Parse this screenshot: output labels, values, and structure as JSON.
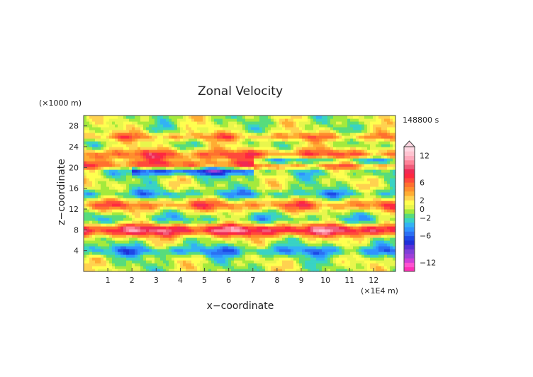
{
  "chart_data": {
    "type": "heatmap",
    "title": "Zonal Velocity",
    "xlabel": "x−coordinate",
    "ylabel": "z−coordinate",
    "x_unit": "(×1E4 m)",
    "y_unit": "(×1000 m)",
    "time_label": "148800 s",
    "x_ticks": [
      "1",
      "2",
      "3",
      "4",
      "5",
      "6",
      "7",
      "8",
      "9",
      "10",
      "11",
      "12"
    ],
    "x_tick_values": [
      1,
      2,
      3,
      4,
      5,
      6,
      7,
      8,
      9,
      10,
      11,
      12
    ],
    "y_ticks": [
      "4",
      "8",
      "12",
      "16",
      "20",
      "24",
      "28"
    ],
    "y_tick_values": [
      4,
      8,
      12,
      16,
      20,
      24,
      28
    ],
    "xlim": [
      0,
      12.9
    ],
    "ylim": [
      0,
      30
    ],
    "colorbar": {
      "labels": [
        "12",
        "6",
        "2",
        "0",
        "−2",
        "−6",
        "−12"
      ],
      "label_values": [
        12,
        6,
        2,
        0,
        -2,
        -6,
        -12
      ],
      "levels": [
        -14,
        -13,
        -12,
        -11,
        -10,
        -9,
        -8,
        -7,
        -6,
        -5,
        -4,
        -3,
        -2,
        -1,
        0,
        1,
        2,
        3,
        4,
        5,
        6,
        7,
        8,
        9,
        10,
        11,
        12,
        13,
        14
      ],
      "colors": [
        "#ff2fb7",
        "#ff52d0",
        "#cf3fd8",
        "#9f3fd8",
        "#7f3fd8",
        "#5630d8",
        "#1f2fd8",
        "#1d49e6",
        "#2b6ff3",
        "#2f93ff",
        "#33b2f4",
        "#39d3c4",
        "#57dc7c",
        "#a4ea3d",
        "#e8f64d",
        "#ffff4f",
        "#ffd24f",
        "#ffad33",
        "#ff8e2d",
        "#ff702f",
        "#ff4a3b",
        "#ff2840",
        "#f02a54",
        "#f05c7a",
        "#ff8498",
        "#ffaabd",
        "#ffc3d0",
        "#ffd7e2"
      ],
      "extend": "max",
      "min": -14,
      "max": 14
    },
    "grid": false
  }
}
